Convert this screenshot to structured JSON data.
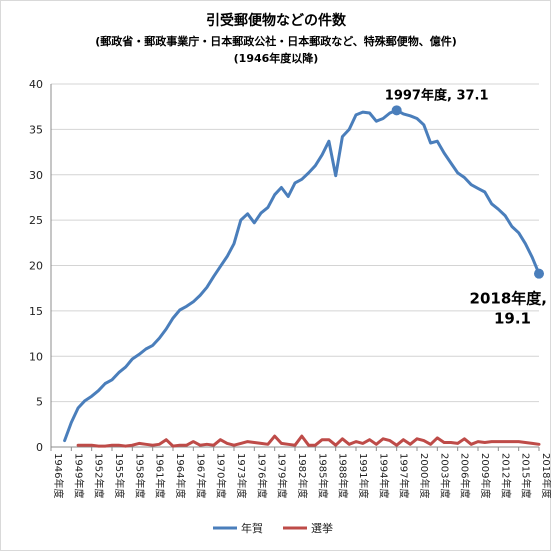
{
  "chart_data": {
    "type": "line",
    "title": "引受郵便物などの件数",
    "subtitle": "(郵政省・郵政事業庁・日本郵政公社・日本郵政など、特殊郵便物、億件)",
    "subtitle2": "(1946年度以降)",
    "ylim": [
      0,
      40
    ],
    "yticks": [
      "0",
      "5",
      "10",
      "15",
      "20",
      "25",
      "30",
      "35",
      "40"
    ],
    "x_years": [
      1946,
      2018
    ],
    "xtick_labels": [
      "1946年度",
      "1949年度",
      "1952年度",
      "1955年度",
      "1958年度",
      "1961年度",
      "1964年度",
      "1967年度",
      "1970年度",
      "1973年度",
      "1976年度",
      "1979年度",
      "1982年度",
      "1985年度",
      "1988年度",
      "1991年度",
      "1994年度",
      "1997年度",
      "2000年度",
      "2003年度",
      "2006年度",
      "2009年度",
      "2012年度",
      "2015年度",
      "2018年度"
    ],
    "grid": true,
    "legend_position": "bottom",
    "series": [
      {
        "name": "年賀",
        "color": "#4a7ebb",
        "points": [
          [
            1948,
            0.7
          ],
          [
            1949,
            2.7
          ],
          [
            1950,
            4.3
          ],
          [
            1951,
            5.1
          ],
          [
            1952,
            5.6
          ],
          [
            1953,
            6.2
          ],
          [
            1954,
            7.0
          ],
          [
            1955,
            7.4
          ],
          [
            1956,
            8.2
          ],
          [
            1957,
            8.8
          ],
          [
            1958,
            9.7
          ],
          [
            1959,
            10.2
          ],
          [
            1960,
            10.8
          ],
          [
            1961,
            11.2
          ],
          [
            1962,
            12.0
          ],
          [
            1963,
            13.0
          ],
          [
            1964,
            14.2
          ],
          [
            1965,
            15.1
          ],
          [
            1966,
            15.5
          ],
          [
            1967,
            16.0
          ],
          [
            1968,
            16.7
          ],
          [
            1969,
            17.6
          ],
          [
            1970,
            18.8
          ],
          [
            1971,
            19.9
          ],
          [
            1972,
            21.0
          ],
          [
            1973,
            22.4
          ],
          [
            1974,
            25.0
          ],
          [
            1975,
            25.7
          ],
          [
            1976,
            24.7
          ],
          [
            1977,
            25.8
          ],
          [
            1978,
            26.4
          ],
          [
            1979,
            27.8
          ],
          [
            1980,
            28.6
          ],
          [
            1981,
            27.6
          ],
          [
            1982,
            29.1
          ],
          [
            1983,
            29.5
          ],
          [
            1984,
            30.2
          ],
          [
            1985,
            31.0
          ],
          [
            1986,
            32.2
          ],
          [
            1987,
            33.7
          ],
          [
            1988,
            29.9
          ],
          [
            1989,
            34.2
          ],
          [
            1990,
            35.0
          ],
          [
            1991,
            36.6
          ],
          [
            1992,
            36.9
          ],
          [
            1993,
            36.8
          ],
          [
            1994,
            35.9
          ],
          [
            1995,
            36.2
          ],
          [
            1996,
            36.8
          ],
          [
            1997,
            37.1
          ],
          [
            1998,
            36.7
          ],
          [
            1999,
            36.5
          ],
          [
            2000,
            36.2
          ],
          [
            2001,
            35.5
          ],
          [
            2002,
            33.5
          ],
          [
            2003,
            33.7
          ],
          [
            2004,
            32.4
          ],
          [
            2005,
            31.3
          ],
          [
            2006,
            30.2
          ],
          [
            2007,
            29.7
          ],
          [
            2008,
            28.9
          ],
          [
            2009,
            28.5
          ],
          [
            2010,
            28.1
          ],
          [
            2011,
            26.8
          ],
          [
            2012,
            26.2
          ],
          [
            2013,
            25.5
          ],
          [
            2014,
            24.3
          ],
          [
            2015,
            23.6
          ],
          [
            2016,
            22.4
          ],
          [
            2017,
            20.9
          ],
          [
            2018,
            19.1
          ]
        ]
      },
      {
        "name": "選挙",
        "color": "#be4b48",
        "points": [
          [
            1950,
            0.2
          ],
          [
            1951,
            0.2
          ],
          [
            1952,
            0.2
          ],
          [
            1953,
            0.1
          ],
          [
            1954,
            0.1
          ],
          [
            1955,
            0.2
          ],
          [
            1956,
            0.2
          ],
          [
            1957,
            0.1
          ],
          [
            1958,
            0.2
          ],
          [
            1959,
            0.4
          ],
          [
            1960,
            0.3
          ],
          [
            1961,
            0.2
          ],
          [
            1962,
            0.3
          ],
          [
            1963,
            0.8
          ],
          [
            1964,
            0.1
          ],
          [
            1965,
            0.2
          ],
          [
            1966,
            0.2
          ],
          [
            1967,
            0.6
          ],
          [
            1968,
            0.2
          ],
          [
            1969,
            0.3
          ],
          [
            1970,
            0.2
          ],
          [
            1971,
            0.8
          ],
          [
            1972,
            0.4
          ],
          [
            1973,
            0.2
          ],
          [
            1974,
            0.4
          ],
          [
            1975,
            0.6
          ],
          [
            1976,
            0.5
          ],
          [
            1977,
            0.4
          ],
          [
            1978,
            0.3
          ],
          [
            1979,
            1.2
          ],
          [
            1980,
            0.4
          ],
          [
            1981,
            0.3
          ],
          [
            1982,
            0.2
          ],
          [
            1983,
            1.2
          ],
          [
            1984,
            0.2
          ],
          [
            1985,
            0.2
          ],
          [
            1986,
            0.8
          ],
          [
            1987,
            0.8
          ],
          [
            1988,
            0.2
          ],
          [
            1989,
            0.9
          ],
          [
            1990,
            0.3
          ],
          [
            1991,
            0.6
          ],
          [
            1992,
            0.4
          ],
          [
            1993,
            0.8
          ],
          [
            1994,
            0.3
          ],
          [
            1995,
            0.9
          ],
          [
            1996,
            0.7
          ],
          [
            1997,
            0.2
          ],
          [
            1998,
            0.8
          ],
          [
            1999,
            0.3
          ],
          [
            2000,
            0.9
          ],
          [
            2001,
            0.7
          ],
          [
            2002,
            0.3
          ],
          [
            2003,
            1.0
          ],
          [
            2004,
            0.5
          ],
          [
            2005,
            0.5
          ],
          [
            2006,
            0.4
          ],
          [
            2007,
            0.9
          ],
          [
            2008,
            0.3
          ],
          [
            2009,
            0.6
          ],
          [
            2010,
            0.5
          ],
          [
            2011,
            0.6
          ],
          [
            2012,
            0.6
          ],
          [
            2013,
            0.6
          ],
          [
            2014,
            0.6
          ],
          [
            2015,
            0.6
          ],
          [
            2016,
            0.5
          ],
          [
            2017,
            0.4
          ],
          [
            2018,
            0.3
          ]
        ]
      }
    ],
    "annotations": [
      {
        "year": 1997,
        "value": 37.1,
        "text": "1997年度, 37.1"
      },
      {
        "year": 2018,
        "value": 19.1,
        "line1": "2018年度,",
        "line2": "19.1"
      }
    ]
  }
}
